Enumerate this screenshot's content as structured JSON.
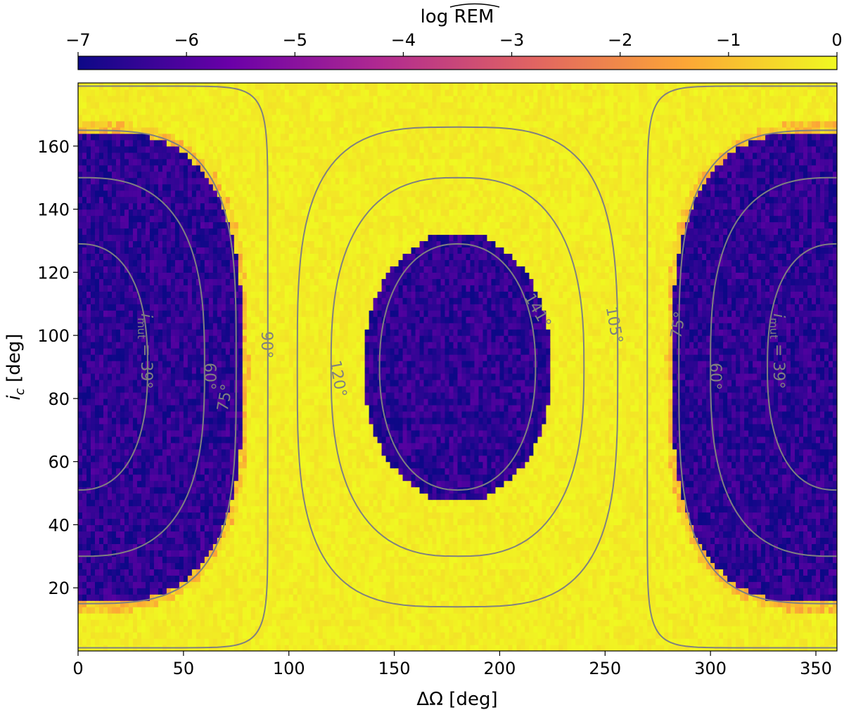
{
  "chart_data": {
    "type": "heatmap",
    "title": "",
    "xlabel": "ΔΩ [deg]",
    "ylabel": "i_c [deg]",
    "ylabel_main": "i",
    "ylabel_sub": "c",
    "ylabel_unit": " [deg]",
    "xlim": [
      0,
      360
    ],
    "ylim": [
      0,
      180
    ],
    "xticks": [
      0,
      50,
      100,
      150,
      200,
      250,
      300,
      350
    ],
    "yticks": [
      20,
      40,
      60,
      80,
      100,
      120,
      140,
      160
    ],
    "colorbar": {
      "label": "log REM",
      "label_text": "log REM",
      "hat_text": "REM",
      "range": [
        -7,
        0
      ],
      "ticks": [
        "−7",
        "−6",
        "−5",
        "−4",
        "−3",
        "−2",
        "−1",
        "0"
      ],
      "tick_values": [
        -7,
        -6,
        -5,
        -4,
        -3,
        -2,
        -1,
        0
      ],
      "colormap": "plasma",
      "colors": [
        "#0d0887",
        "#6a00a8",
        "#b12a90",
        "#e16462",
        "#fca636",
        "#f0f921"
      ]
    },
    "regions": [
      {
        "name": "left_low",
        "value": -6.5,
        "center_x": 0,
        "center_y": 90,
        "half_width_x": 78,
        "half_height_y": 75
      },
      {
        "name": "right_low",
        "value": -6.5,
        "center_x": 360,
        "center_y": 90,
        "half_width_x": 78,
        "half_height_y": 75
      },
      {
        "name": "central_low",
        "value": -6.5,
        "center_x": 180,
        "center_y": 90,
        "half_width_x": 45,
        "half_height_y": 43
      },
      {
        "name": "background",
        "value": -0.05
      }
    ],
    "contours": [
      {
        "label": "i_mut = 39°",
        "label_main": "i",
        "label_sub": "mut",
        "label_rest": " = 39°",
        "value": 39
      },
      {
        "label": "60°",
        "value": 60
      },
      {
        "label": "75°",
        "value": 75
      },
      {
        "label": "90°",
        "value": 90
      },
      {
        "label": "105°",
        "value": 105
      },
      {
        "label": "120°",
        "value": 120
      },
      {
        "label": "141°",
        "value": 141
      }
    ],
    "contour_color": "#808080",
    "grid": false
  }
}
